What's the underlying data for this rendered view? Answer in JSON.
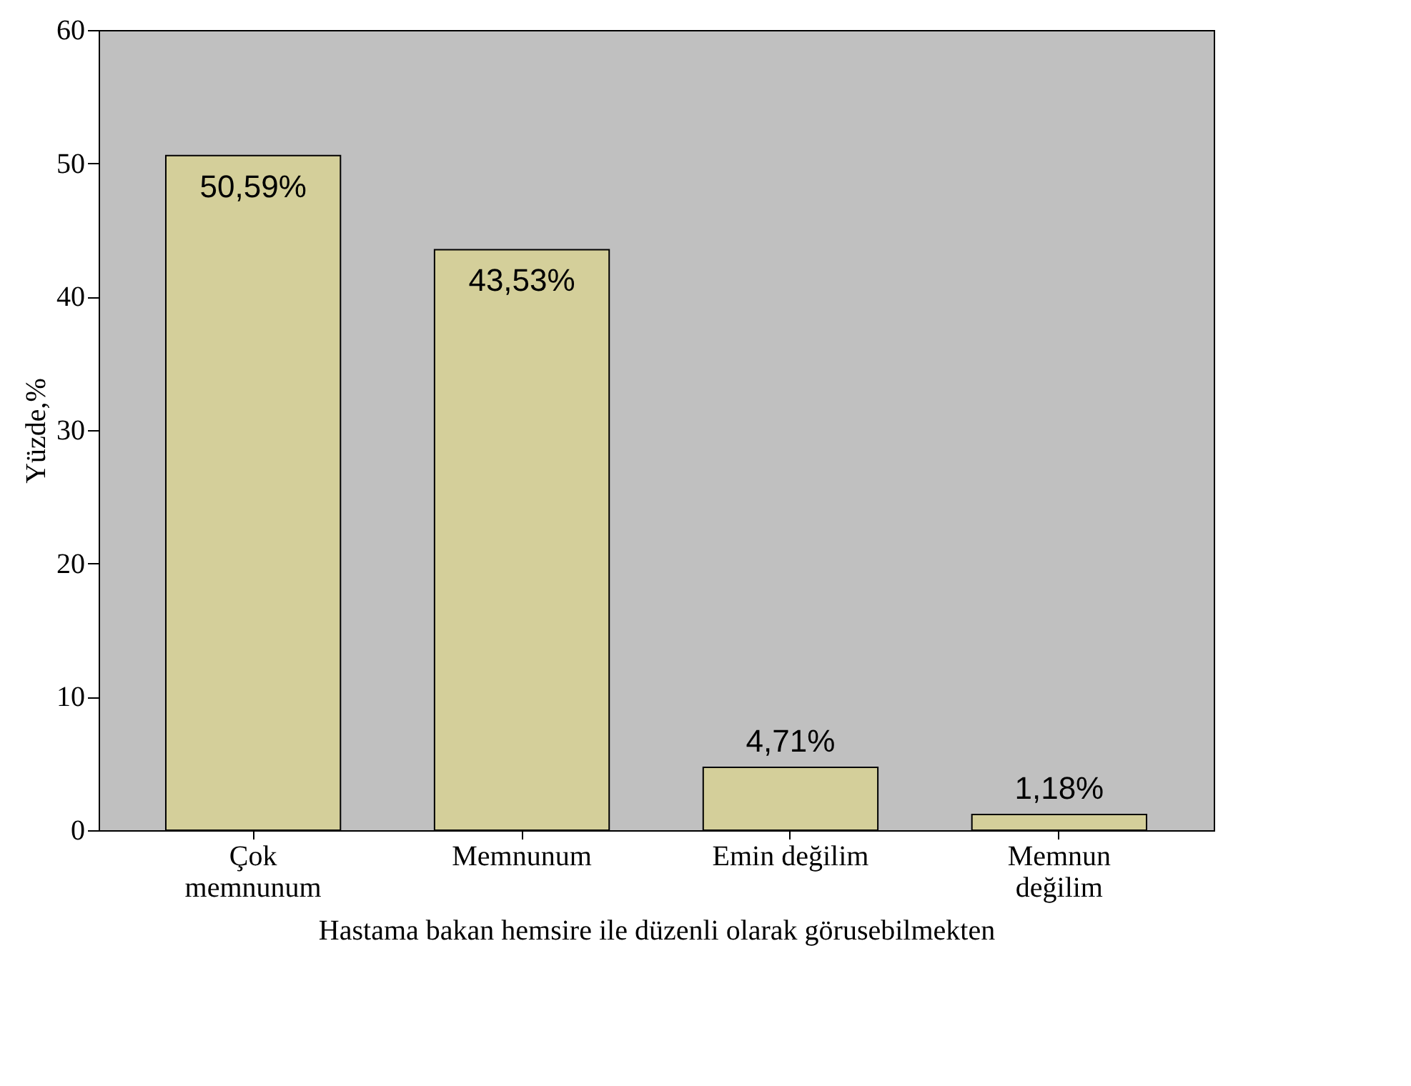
{
  "chart_data": {
    "type": "bar",
    "xlabel": "Hastama bakan hemsire ile düzenli olarak görusebilmekten",
    "ylabel": "Yüzde,%",
    "categories": [
      "Çok memnunum",
      "Memnunum",
      "Emin değilim",
      "Memnun değilim"
    ],
    "values": [
      50.59,
      43.53,
      4.71,
      1.18
    ],
    "value_labels": [
      "50,59%",
      "43,53%",
      "4,71%",
      "1,18%"
    ],
    "color": "#d4cf9a",
    "ylim": [
      0,
      60
    ],
    "yticks": [
      0,
      10,
      20,
      30,
      40,
      50,
      60
    ],
    "grid": false
  }
}
